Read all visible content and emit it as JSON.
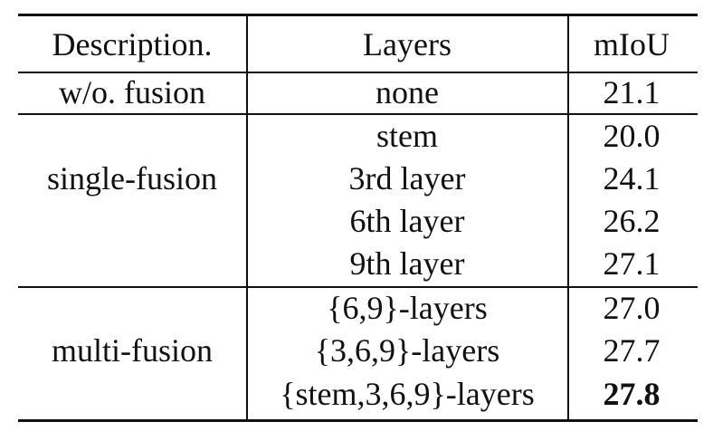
{
  "table": {
    "headers": {
      "description": "Description.",
      "layers": "Layers",
      "miou": "mIoU"
    },
    "groups": [
      {
        "description": "w/o. fusion",
        "rows": [
          {
            "layers": "none",
            "miou": "21.1"
          }
        ]
      },
      {
        "description": "single-fusion",
        "rows": [
          {
            "layers": "stem",
            "miou": "20.0"
          },
          {
            "layers": "3rd layer",
            "miou": "24.1"
          },
          {
            "layers": "6th layer",
            "miou": "26.2"
          },
          {
            "layers": "9th layer",
            "miou": "27.1"
          }
        ]
      },
      {
        "description": "multi-fusion",
        "rows": [
          {
            "layers": "{6,9}-layers",
            "miou": "27.0"
          },
          {
            "layers": "{3,6,9}-layers",
            "miou": "27.7"
          },
          {
            "layers": "{stem,3,6,9}-layers",
            "miou": "27.8",
            "best": true
          }
        ]
      }
    ]
  }
}
